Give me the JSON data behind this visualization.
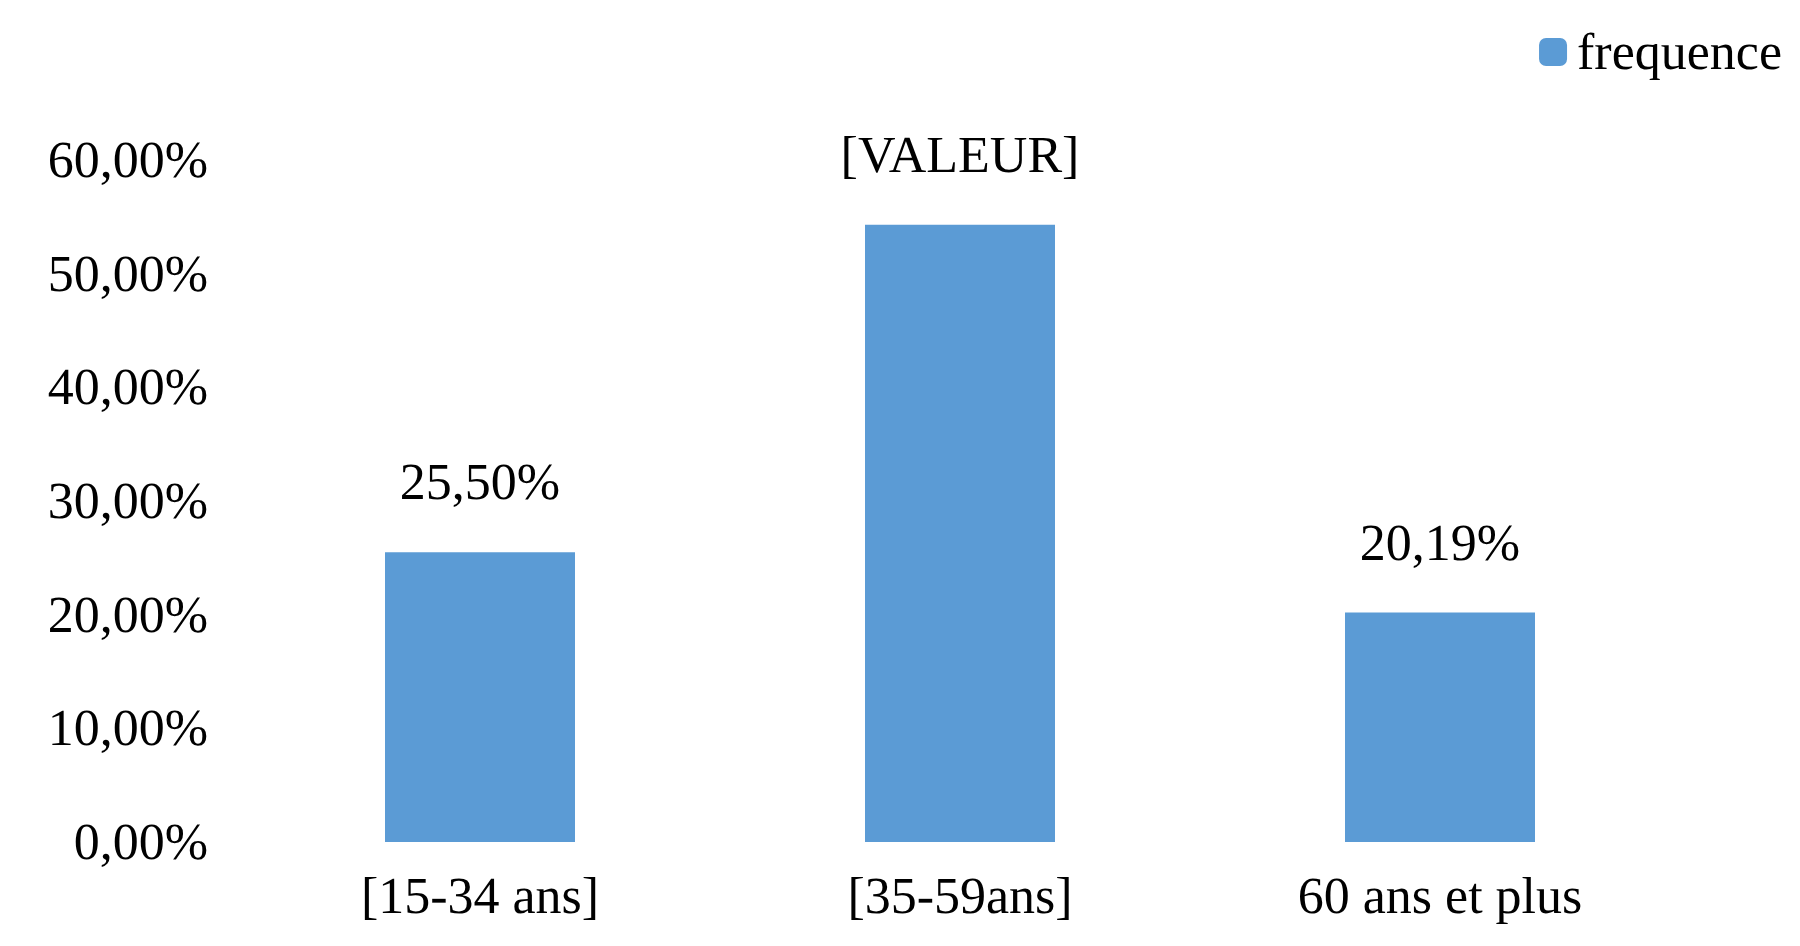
{
  "chart_data": {
    "type": "bar",
    "categories": [
      "[15-34 ans]",
      "[35-59ans]",
      "60 ans et plus"
    ],
    "series": [
      {
        "name": "frequence",
        "color": "#5b9bd5",
        "values": [
          25.5,
          54.3,
          20.19
        ],
        "value_labels": [
          "25,50%",
          "[VALEUR]",
          "20,19%"
        ]
      }
    ],
    "ylim": [
      0,
      60
    ],
    "yticks": [
      {
        "value": 0,
        "label": "0,00%"
      },
      {
        "value": 10,
        "label": "10,00%"
      },
      {
        "value": 20,
        "label": "20,00%"
      },
      {
        "value": 30,
        "label": "30,00%"
      },
      {
        "value": 40,
        "label": "40,00%"
      },
      {
        "value": 50,
        "label": "50,00%"
      },
      {
        "value": 60,
        "label": "60,00%"
      }
    ],
    "grid": false,
    "legend": "top right"
  }
}
